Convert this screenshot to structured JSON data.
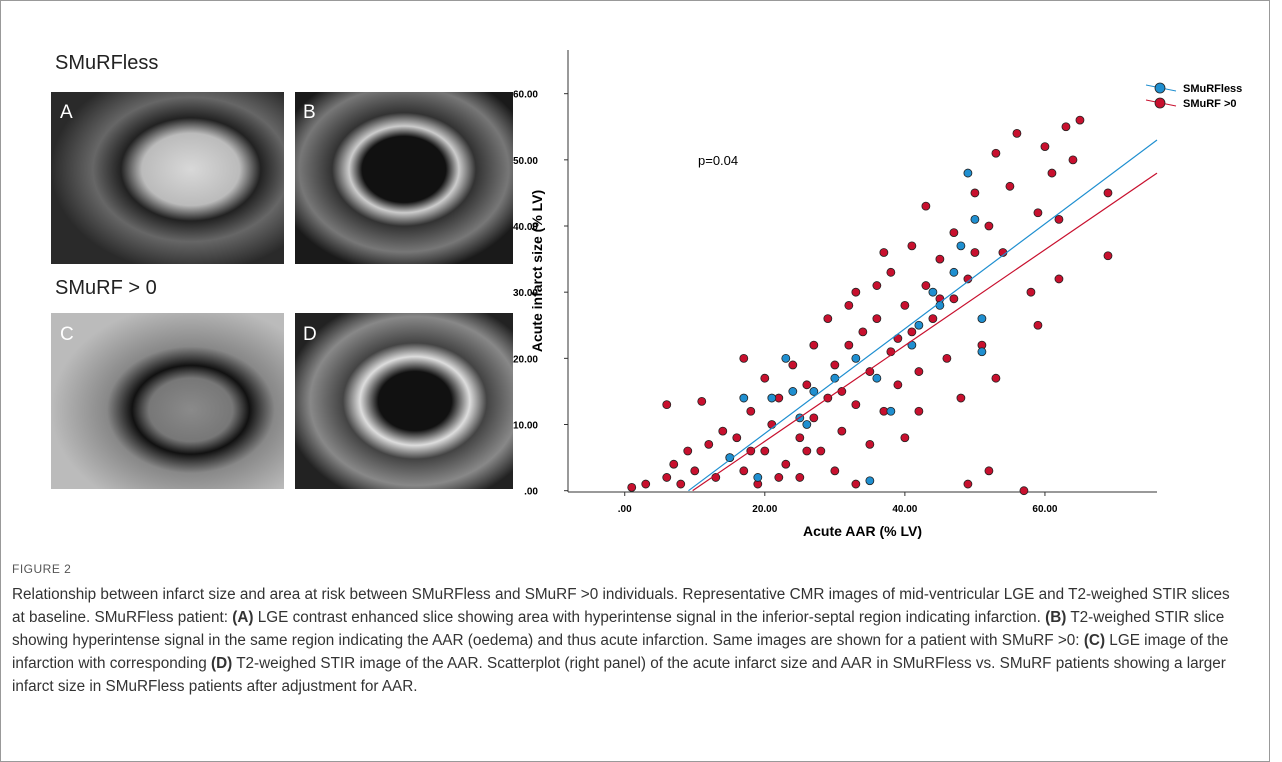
{
  "panels": {
    "group_1": "SMuRFless",
    "group_2": "SMuRF > 0",
    "labels": [
      "A",
      "B",
      "C",
      "D"
    ]
  },
  "chart_data": {
    "type": "scatter",
    "xlabel": "Acute AAR (% LV)",
    "ylabel": "Acute infarct size (% LV)",
    "annotation": "p=0.04",
    "xlim": [
      -8.1,
      76
    ],
    "ylim": [
      -0.2,
      66.6
    ],
    "xticks": [
      {
        "value": 0,
        "label": ".00"
      },
      {
        "value": 20,
        "label": "20.00"
      },
      {
        "value": 40,
        "label": "40.00"
      },
      {
        "value": 60,
        "label": "60.00"
      }
    ],
    "yticks": [
      {
        "value": 0,
        "label": ".00"
      },
      {
        "value": 10,
        "label": "10.00"
      },
      {
        "value": 20,
        "label": "20.00"
      },
      {
        "value": 30,
        "label": "30.00"
      },
      {
        "value": 40,
        "label": "40.00"
      },
      {
        "value": 50,
        "label": "50.00"
      },
      {
        "value": 60,
        "label": "60.00"
      }
    ],
    "grid": false,
    "legend": "top-right",
    "series": [
      {
        "name": "SMuRF >0",
        "color": "#c8102e",
        "x": [
          1,
          3,
          6,
          6,
          7,
          8,
          9,
          10,
          11,
          12,
          13,
          14,
          15,
          16,
          17,
          17,
          18,
          19,
          20,
          20,
          21,
          22,
          23,
          24,
          25,
          25,
          26,
          27,
          27,
          28,
          29,
          29,
          30,
          30,
          31,
          32,
          32,
          33,
          33,
          34,
          35,
          35,
          36,
          36,
          37,
          38,
          38,
          39,
          40,
          40,
          41,
          41,
          42,
          43,
          43,
          44,
          45,
          46,
          47,
          47,
          48,
          49,
          49,
          50,
          51,
          52,
          52,
          53,
          53,
          54,
          55,
          56,
          57,
          58,
          59,
          59,
          60,
          61,
          62,
          62,
          63,
          64,
          65,
          69,
          69,
          33,
          37,
          42,
          26,
          22,
          18,
          31,
          39,
          45,
          50
        ],
        "values": [
          0.5,
          1,
          2,
          13,
          4,
          1,
          6,
          3,
          13.5,
          7,
          2,
          9,
          5,
          8,
          20,
          3,
          12,
          1,
          6,
          17,
          10,
          14,
          4,
          19,
          8,
          2,
          16,
          22,
          11,
          6,
          26,
          14,
          19,
          3,
          9,
          28,
          22,
          13,
          1,
          24,
          18,
          7,
          31,
          26,
          12,
          21,
          33,
          16,
          28,
          8,
          37,
          24,
          12,
          31,
          43,
          26,
          35,
          20,
          39,
          29,
          14,
          32,
          1,
          45,
          22,
          40,
          3,
          17,
          51,
          36,
          46,
          54,
          0,
          30,
          42,
          25,
          52,
          48,
          41,
          32,
          55,
          50,
          56,
          45,
          35.5,
          30,
          36,
          18,
          6,
          2,
          6,
          15,
          23,
          29,
          36
        ],
        "fit": {
          "x": [
            9.7,
            76
          ],
          "y": [
            0,
            48
          ]
        }
      },
      {
        "name": "SMuRFless",
        "color": "#1f8fd0",
        "x": [
          15,
          17,
          19,
          21,
          23,
          24,
          25,
          27,
          30,
          33,
          35,
          36,
          38,
          41,
          42,
          44,
          45,
          47,
          49,
          50,
          51,
          51,
          48,
          26
        ],
        "values": [
          5,
          14,
          2,
          14,
          20,
          15,
          11,
          15,
          17,
          20,
          1.5,
          17,
          12,
          22,
          25,
          30,
          28,
          33,
          48,
          41,
          21,
          26,
          37,
          10
        ],
        "fit": {
          "x": [
            9.1,
            76
          ],
          "y": [
            0,
            53
          ]
        }
      }
    ]
  },
  "figure_label": "FIGURE 2",
  "caption": [
    {
      "text": "Relationship between infarct size and area at risk between SMuRFless and SMuRF >0 individuals. Representative CMR images of mid-ventricular LGE and T2-weighed STIR slices at baseline. SMuRFless patient: ",
      "bold": false
    },
    {
      "text": "(A)",
      "bold": true
    },
    {
      "text": " LGE contrast enhanced slice showing area with hyperintense signal in the inferior-septal region indicating infarction. ",
      "bold": false
    },
    {
      "text": "(B)",
      "bold": true
    },
    {
      "text": " T2-weighed STIR slice showing hyperintense signal in the same region indicating the AAR (oedema) and thus acute infarction. Same images are shown for a patient with SMuRF >0: ",
      "bold": false
    },
    {
      "text": "(C)",
      "bold": true
    },
    {
      "text": " LGE image of the infarction with corresponding ",
      "bold": false
    },
    {
      "text": "(D)",
      "bold": true
    },
    {
      "text": " T2-weighed STIR image of the AAR. Scatterplot (right panel) of the acute infarct size and AAR in SMuRFless vs. SMuRF patients showing a larger infarct size in SMuRFless patients after adjustment for AAR.",
      "bold": false
    }
  ]
}
